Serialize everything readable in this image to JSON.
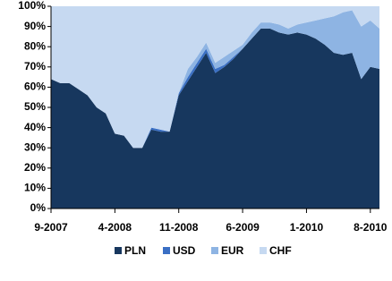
{
  "chart_data": {
    "type": "stacked-area",
    "categories": [
      "9-2007",
      null,
      null,
      null,
      null,
      null,
      null,
      "4-2008",
      null,
      null,
      null,
      null,
      null,
      null,
      "11-2008",
      null,
      null,
      null,
      null,
      null,
      null,
      "6-2009",
      null,
      null,
      null,
      null,
      null,
      null,
      "1-2010",
      null,
      null,
      null,
      null,
      null,
      null,
      "8-2010",
      null
    ],
    "series": [
      {
        "name": "PLN",
        "color": "#17375e",
        "values": [
          64,
          62,
          62,
          59,
          56,
          50,
          47,
          37,
          36,
          30,
          30,
          39,
          38,
          38,
          56,
          63,
          70,
          77,
          67,
          70,
          74,
          79,
          84,
          89,
          89,
          87,
          86,
          87,
          86,
          84,
          81,
          77,
          76,
          77,
          64,
          70,
          69
        ]
      },
      {
        "name": "USD",
        "color": "#3a6fc4",
        "values": [
          0,
          0,
          0,
          0,
          0,
          0,
          0,
          0,
          0,
          0,
          0,
          1,
          1,
          0,
          1,
          2,
          2,
          2,
          2,
          1,
          1,
          0,
          0,
          0,
          0,
          0,
          0,
          0,
          0,
          0,
          0,
          0,
          0,
          0,
          0,
          0,
          0
        ]
      },
      {
        "name": "EUR",
        "color": "#8eb4e3",
        "values": [
          0,
          0,
          0,
          0,
          0,
          0,
          0,
          0,
          0,
          0,
          0,
          0,
          0,
          0,
          0,
          4,
          3,
          3,
          3,
          4,
          3,
          2,
          3,
          3,
          3,
          4,
          3,
          4,
          6,
          9,
          13,
          18,
          21,
          21,
          26,
          23,
          20
        ]
      },
      {
        "name": "CHF",
        "color": "#c6d9f1",
        "values": [
          36,
          38,
          38,
          41,
          44,
          50,
          53,
          63,
          64,
          70,
          70,
          60,
          61,
          62,
          43,
          31,
          25,
          18,
          28,
          25,
          22,
          19,
          13,
          8,
          8,
          9,
          11,
          9,
          8,
          7,
          6,
          5,
          3,
          2,
          10,
          7,
          11
        ]
      }
    ],
    "ylim": [
      0,
      100
    ],
    "yticks": [
      {
        "value": 0,
        "label": "0%"
      },
      {
        "value": 10,
        "label": "10%"
      },
      {
        "value": 20,
        "label": "20%"
      },
      {
        "value": 30,
        "label": "30%"
      },
      {
        "value": 40,
        "label": "40%"
      },
      {
        "value": 50,
        "label": "50%"
      },
      {
        "value": 60,
        "label": "60%"
      },
      {
        "value": 70,
        "label": "70%"
      },
      {
        "value": 80,
        "label": "80%"
      },
      {
        "value": 90,
        "label": "90%"
      },
      {
        "value": 100,
        "label": "100%"
      }
    ],
    "legend": "bottom"
  }
}
